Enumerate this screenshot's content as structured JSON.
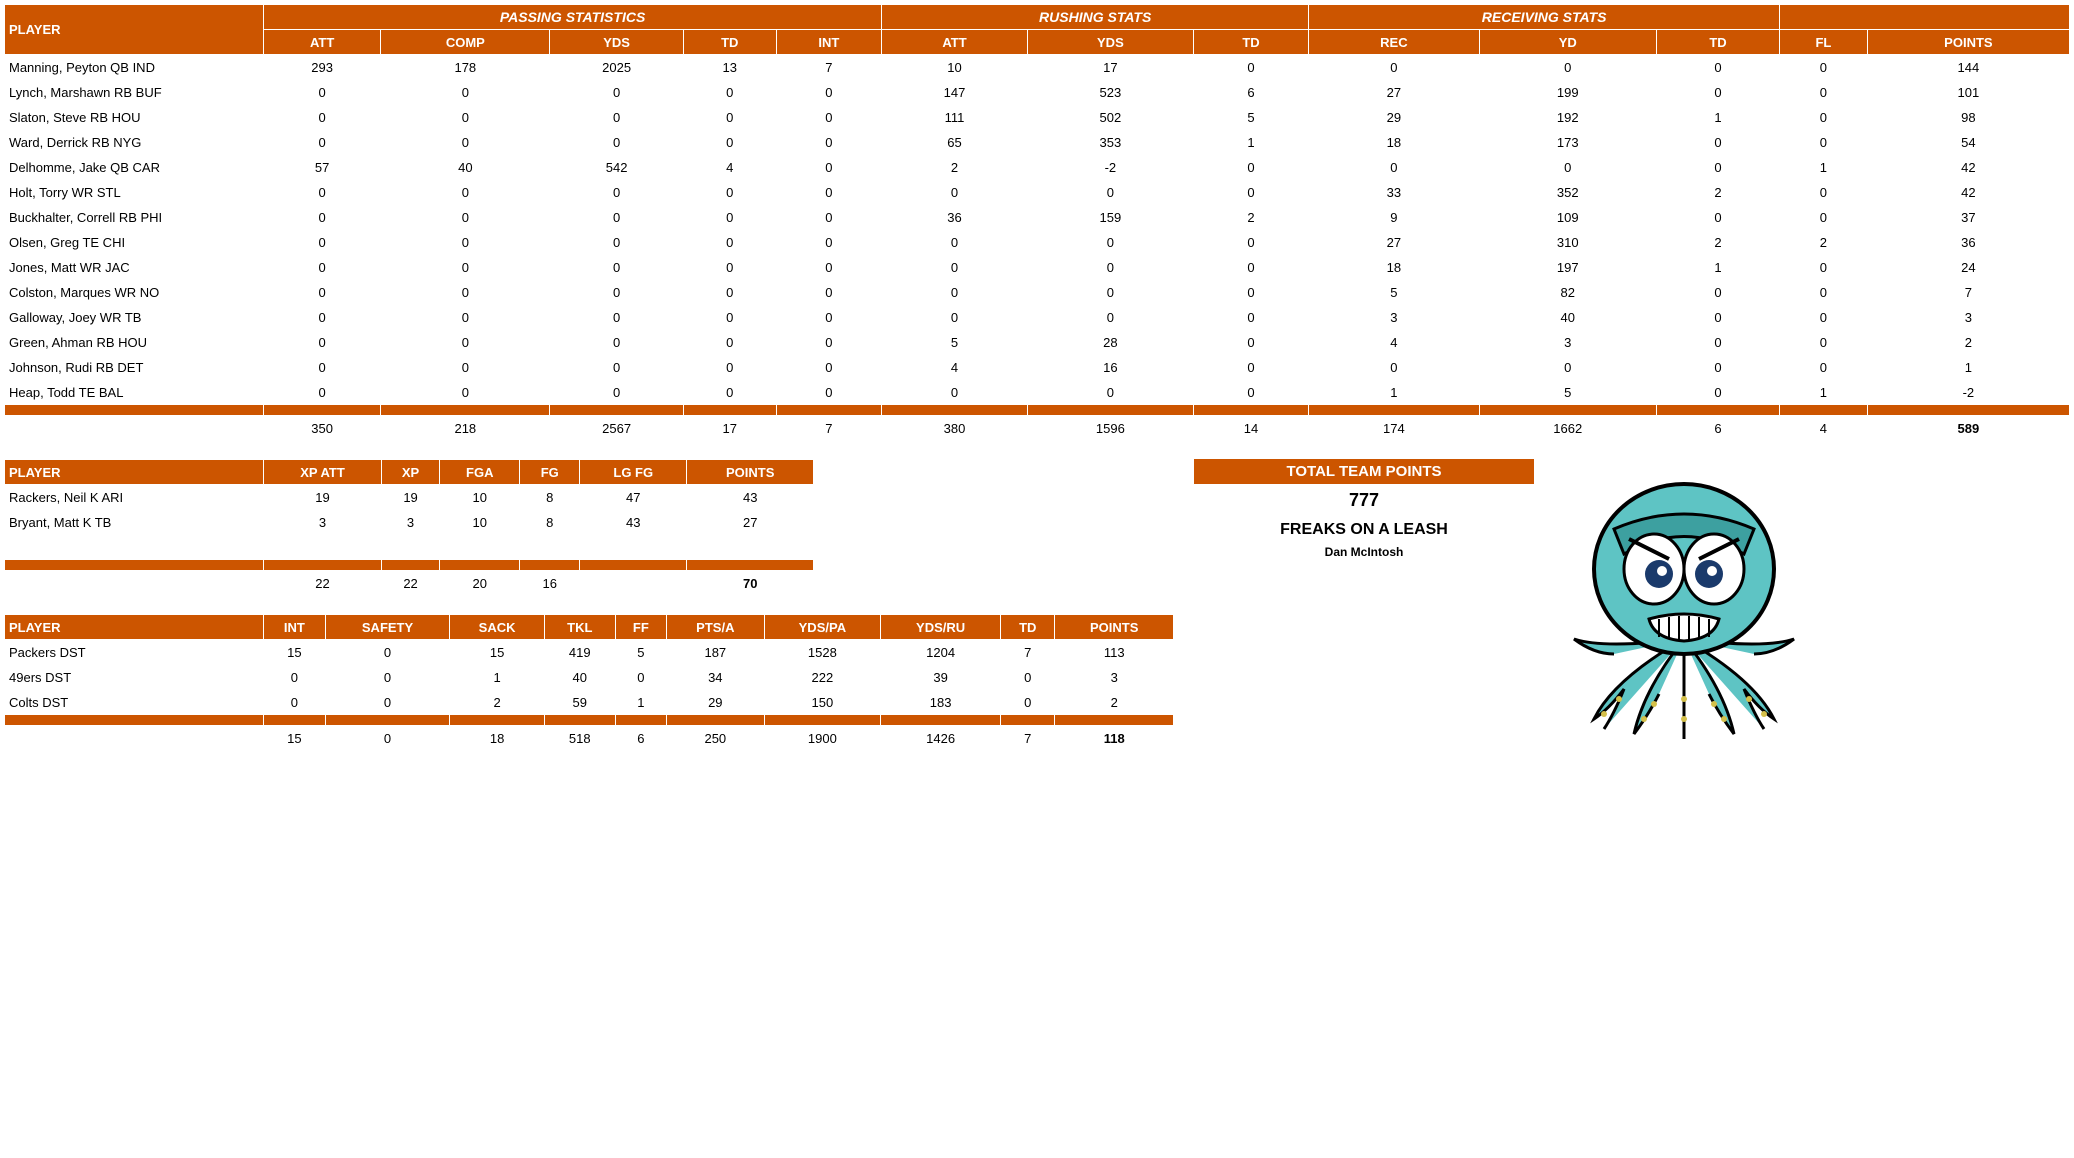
{
  "colors": {
    "header_bg": "#cc5500",
    "header_fg": "#ffffff",
    "text": "#000000"
  },
  "mainTable": {
    "groupHeaders": {
      "passing": "PASSING STATISTICS",
      "rushing": "RUSHING STATS",
      "receiving": "RECEIVING STATS"
    },
    "columns": [
      "PLAYER",
      "ATT",
      "COMP",
      "YDS",
      "TD",
      "INT",
      "ATT",
      "YDS",
      "TD",
      "REC",
      "YD",
      "TD",
      "FL",
      "POINTS"
    ],
    "rows": [
      [
        "Manning, Peyton QB IND",
        293,
        178,
        2025,
        13,
        7,
        10,
        17,
        0,
        0,
        0,
        0,
        0,
        144
      ],
      [
        "Lynch, Marshawn RB BUF",
        0,
        0,
        0,
        0,
        0,
        147,
        523,
        6,
        27,
        199,
        0,
        0,
        101
      ],
      [
        "Slaton, Steve RB HOU",
        0,
        0,
        0,
        0,
        0,
        111,
        502,
        5,
        29,
        192,
        1,
        0,
        98
      ],
      [
        "Ward, Derrick RB NYG",
        0,
        0,
        0,
        0,
        0,
        65,
        353,
        1,
        18,
        173,
        0,
        0,
        54
      ],
      [
        "Delhomme, Jake QB CAR",
        57,
        40,
        542,
        4,
        0,
        2,
        -2,
        0,
        0,
        0,
        0,
        1,
        42
      ],
      [
        "Holt, Torry WR STL",
        0,
        0,
        0,
        0,
        0,
        0,
        0,
        0,
        33,
        352,
        2,
        0,
        42
      ],
      [
        "Buckhalter, Correll RB PHI",
        0,
        0,
        0,
        0,
        0,
        36,
        159,
        2,
        9,
        109,
        0,
        0,
        37
      ],
      [
        "Olsen, Greg TE CHI",
        0,
        0,
        0,
        0,
        0,
        0,
        0,
        0,
        27,
        310,
        2,
        2,
        36
      ],
      [
        "Jones, Matt WR JAC",
        0,
        0,
        0,
        0,
        0,
        0,
        0,
        0,
        18,
        197,
        1,
        0,
        24
      ],
      [
        "Colston, Marques WR NO",
        0,
        0,
        0,
        0,
        0,
        0,
        0,
        0,
        5,
        82,
        0,
        0,
        7
      ],
      [
        "Galloway, Joey WR TB",
        0,
        0,
        0,
        0,
        0,
        0,
        0,
        0,
        3,
        40,
        0,
        0,
        3
      ],
      [
        "Green, Ahman RB HOU",
        0,
        0,
        0,
        0,
        0,
        5,
        28,
        0,
        4,
        3,
        0,
        0,
        2
      ],
      [
        "Johnson, Rudi RB DET",
        0,
        0,
        0,
        0,
        0,
        4,
        16,
        0,
        0,
        0,
        0,
        0,
        1
      ],
      [
        "Heap, Todd TE BAL",
        0,
        0,
        0,
        0,
        0,
        0,
        0,
        0,
        1,
        5,
        0,
        1,
        -2
      ]
    ],
    "totals": [
      "",
      350,
      218,
      2567,
      17,
      7,
      380,
      1596,
      14,
      174,
      1662,
      6,
      4,
      589
    ]
  },
  "kickTable": {
    "columns": [
      "PLAYER",
      "XP ATT",
      "XP",
      "FGA",
      "FG",
      "LG FG",
      "POINTS"
    ],
    "rows": [
      [
        "Rackers, Neil K ARI",
        19,
        19,
        10,
        8,
        47,
        43
      ],
      [
        "Bryant, Matt K TB",
        3,
        3,
        10,
        8,
        43,
        27
      ]
    ],
    "totals": [
      "",
      22,
      22,
      20,
      16,
      "",
      70
    ]
  },
  "dstTable": {
    "columns": [
      "PLAYER",
      "INT",
      "SAFETY",
      "SACK",
      "TKL",
      "FF",
      "PTS/A",
      "YDS/PA",
      "YDS/RU",
      "TD",
      "POINTS"
    ],
    "rows": [
      [
        "Packers DST",
        15,
        0,
        15,
        419,
        5,
        187,
        1528,
        1204,
        7,
        113
      ],
      [
        "49ers DST",
        0,
        0,
        1,
        40,
        0,
        34,
        222,
        39,
        0,
        3
      ],
      [
        "Colts DST",
        0,
        0,
        2,
        59,
        1,
        29,
        150,
        183,
        0,
        2
      ]
    ],
    "totals": [
      "",
      15,
      0,
      18,
      518,
      6,
      250,
      1900,
      1426,
      7,
      118
    ]
  },
  "teamBox": {
    "label": "TOTAL TEAM POINTS",
    "points": "777",
    "teamName": "FREAKS ON A LEASH",
    "owner": "Dan McIntosh"
  }
}
